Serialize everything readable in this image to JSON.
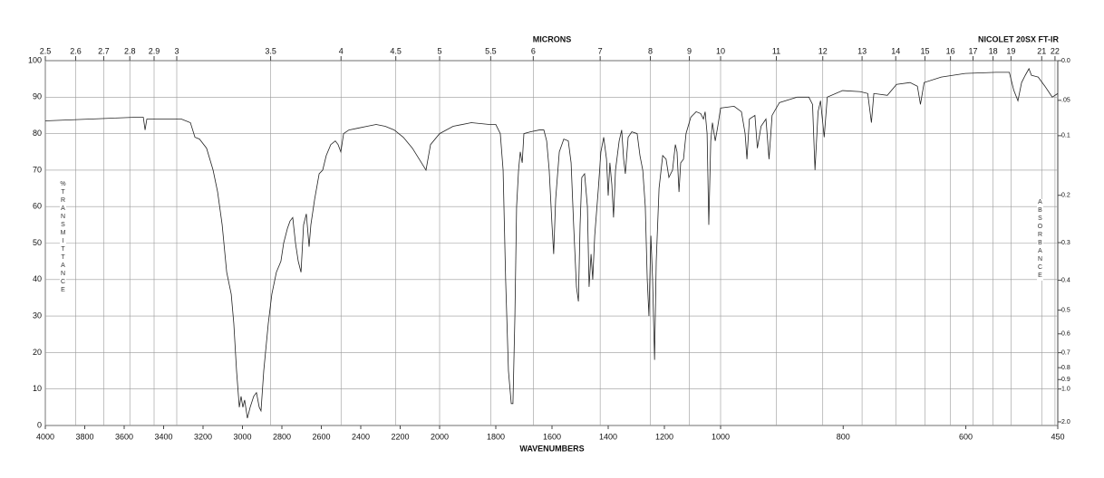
{
  "chart_data": {
    "type": "line",
    "top_axis_label": "MICRONS",
    "instrument": "NICOLET 20SX FT-IR",
    "xlabel": "WAVENUMBERS",
    "ylabel": "%TRANSMITTANCE",
    "y2label": "ABSORBANCE",
    "xlim": [
      4000,
      450
    ],
    "x_scale_breaks": [
      2000,
      1000
    ],
    "xticks": [
      4000,
      3800,
      3600,
      3400,
      3200,
      3000,
      2800,
      2600,
      2400,
      2200,
      2000,
      1800,
      1600,
      1400,
      1200,
      1000,
      800,
      600,
      450
    ],
    "micron_ticks": [
      2.5,
      2.6,
      2.7,
      2.8,
      2.9,
      3,
      3.5,
      4,
      4.5,
      5,
      5.5,
      6,
      7,
      8,
      9,
      10,
      11,
      12,
      13,
      14,
      15,
      16,
      17,
      18,
      19,
      21,
      22
    ],
    "ylim": [
      0,
      100
    ],
    "yticks": [
      0,
      10,
      20,
      30,
      40,
      50,
      60,
      70,
      80,
      90,
      100
    ],
    "y2ticks": [
      {
        "value": 0,
        "label": "0.0"
      },
      {
        "value": 0.05,
        "label": ".05"
      },
      0.1,
      0.2,
      0.3,
      0.4,
      0.5,
      0.6,
      0.7,
      0.8,
      0.9,
      {
        "value": 1,
        "label": "1.0"
      },
      {
        "value": 2,
        "label": "2.0"
      }
    ],
    "grid": true,
    "x": [
      4000,
      3770,
      3540,
      3503,
      3494,
      3485,
      3310,
      3264,
      3241,
      3218,
      3182,
      3149,
      3126,
      3103,
      3080,
      3057,
      3044,
      3030,
      3016,
      3007,
      2998,
      2989,
      2975,
      2961,
      2943,
      2929,
      2915,
      2906,
      2892,
      2869,
      2851,
      2828,
      2805,
      2791,
      2772,
      2759,
      2745,
      2731,
      2717,
      2703,
      2690,
      2676,
      2662,
      2653,
      2634,
      2611,
      2593,
      2575,
      2552,
      2529,
      2515,
      2501,
      2487,
      2460,
      2414,
      2368,
      2322,
      2276,
      2230,
      2184,
      2138,
      2092,
      2069,
      2046,
      2000,
      1952,
      1887,
      1823,
      1800,
      1784,
      1774,
      1765,
      1755,
      1745,
      1739,
      1732,
      1726,
      1719,
      1713,
      1706,
      1700,
      1677,
      1645,
      1629,
      1619,
      1610,
      1600,
      1594,
      1587,
      1574,
      1558,
      1542,
      1532,
      1523,
      1513,
      1506,
      1500,
      1494,
      1484,
      1474,
      1468,
      1461,
      1455,
      1448,
      1435,
      1426,
      1416,
      1406,
      1400,
      1394,
      1387,
      1381,
      1374,
      1361,
      1352,
      1345,
      1339,
      1329,
      1316,
      1297,
      1287,
      1277,
      1268,
      1261,
      1255,
      1248,
      1242,
      1235,
      1229,
      1219,
      1206,
      1194,
      1184,
      1171,
      1161,
      1155,
      1148,
      1142,
      1132,
      1123,
      1106,
      1087,
      1071,
      1061,
      1055,
      1048,
      1042,
      1035,
      1029,
      1019,
      1010,
      1000,
      978,
      966,
      960,
      957,
      953,
      944,
      940,
      934,
      926,
      921,
      916,
      904,
      875,
      856,
      850,
      846,
      841,
      837,
      831,
      826,
      801,
      772,
      760,
      754,
      750,
      728,
      713,
      691,
      679,
      674,
      668,
      640,
      601,
      551,
      529,
      522,
      515,
      509,
      503,
      497,
      493,
      482,
      471,
      463,
      459,
      450
    ],
    "series": [
      {
        "color": "#222222",
        "values": [
          83.5,
          84,
          84.5,
          84.5,
          81,
          84,
          84,
          83,
          79,
          78.5,
          76,
          70,
          64,
          55,
          42,
          36,
          28,
          15,
          5,
          8,
          5,
          7,
          2,
          5,
          8,
          9,
          5,
          4,
          15,
          28,
          36,
          42,
          45,
          50,
          54,
          56,
          57,
          50,
          45,
          42,
          55,
          58,
          49,
          55,
          62,
          69,
          70,
          74,
          77,
          78,
          77,
          75,
          80,
          81,
          81.5,
          82,
          82.5,
          82,
          81,
          79,
          76,
          72,
          70,
          77,
          80,
          82,
          83,
          82.5,
          82.5,
          80,
          70,
          40,
          15,
          6,
          6,
          30,
          60,
          70,
          75,
          72,
          80,
          80.5,
          81,
          81,
          78,
          70,
          55,
          47,
          62,
          75,
          78.5,
          78,
          72,
          55,
          38,
          34,
          55,
          68,
          69,
          60,
          38,
          47,
          40,
          52,
          65,
          75,
          79,
          73,
          63,
          72,
          66,
          57,
          70,
          78,
          81,
          73,
          69,
          79,
          80.5,
          80,
          74,
          70,
          60,
          40,
          30,
          52,
          40,
          18,
          45,
          65,
          74,
          73,
          68,
          70,
          77,
          75,
          64,
          72,
          73,
          80,
          84.5,
          86,
          85.5,
          84,
          86,
          80,
          55,
          78,
          83,
          78,
          82,
          87,
          87.5,
          86,
          80,
          73,
          84,
          85,
          76,
          82,
          84,
          73,
          85,
          88.5,
          90,
          90,
          88,
          70,
          86,
          89,
          79,
          90,
          91.8,
          91.5,
          91,
          83,
          91,
          90.5,
          93.5,
          94,
          93,
          88,
          94,
          95.5,
          96.5,
          96.8,
          96.8,
          92,
          89,
          94,
          96,
          97.8,
          96,
          95.5,
          93,
          91,
          90,
          91
        ]
      }
    ]
  }
}
